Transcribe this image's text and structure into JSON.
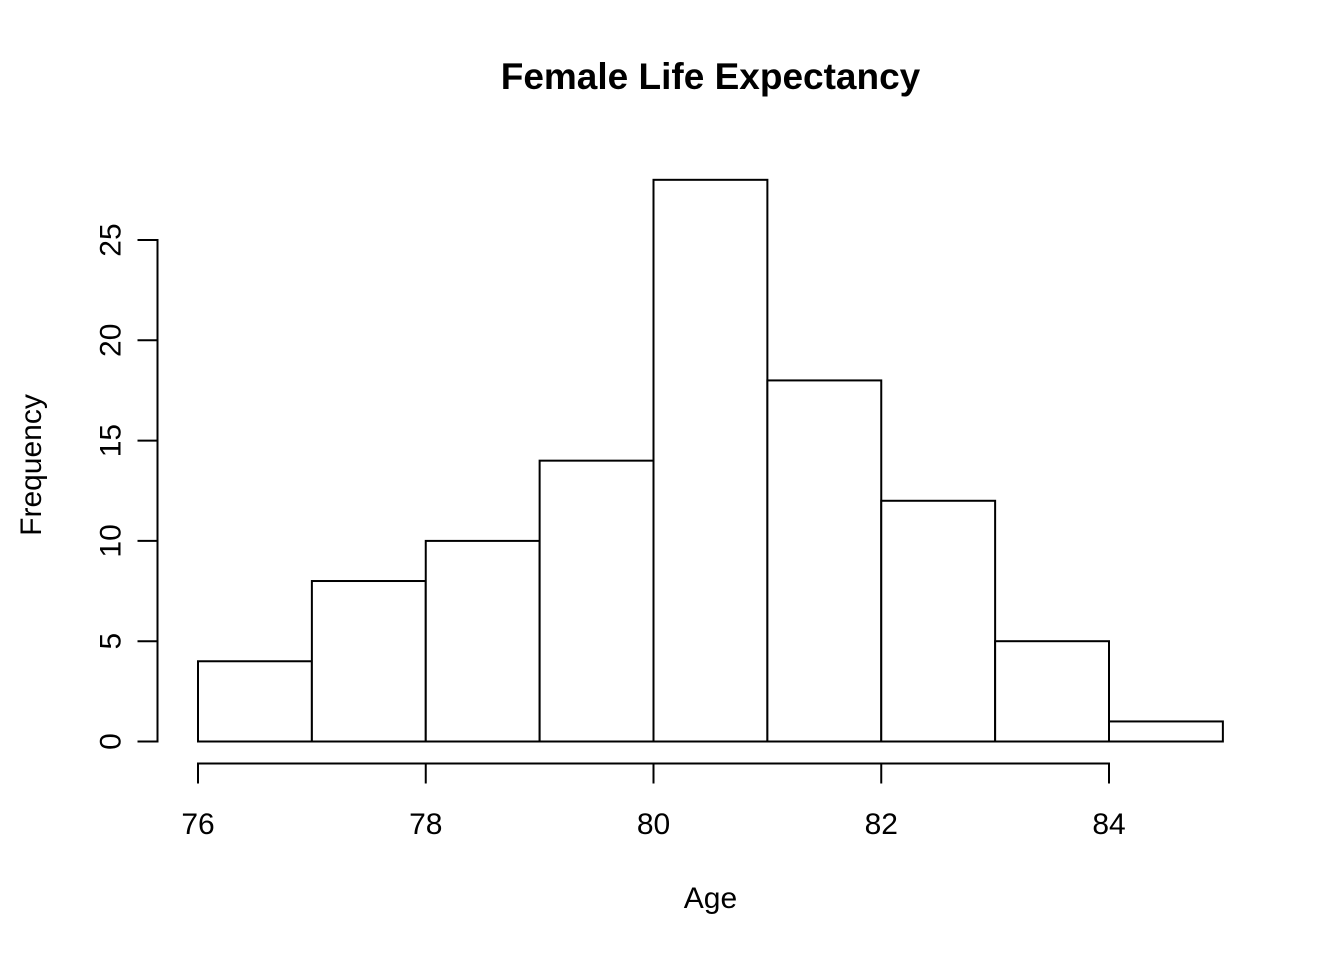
{
  "chart_data": {
    "type": "bar",
    "subtype": "histogram",
    "title": "Female Life Expectancy",
    "xlabel": "Age",
    "ylabel": "Frequency",
    "bin_edges": [
      76,
      77,
      78,
      79,
      80,
      81,
      82,
      83,
      84,
      85
    ],
    "counts": [
      4,
      8,
      10,
      14,
      28,
      18,
      12,
      5,
      1
    ],
    "x_ticks": [
      76,
      78,
      80,
      82,
      84
    ],
    "y_ticks": [
      0,
      5,
      10,
      15,
      20,
      25
    ],
    "xlim": [
      76,
      85
    ],
    "ylim": [
      0,
      28
    ],
    "x_axis_range": [
      76,
      84
    ],
    "y_axis_range": [
      0,
      25
    ],
    "grid": false,
    "legend": false,
    "bar_fill": "#ffffff",
    "line_color": "#000000",
    "background": "#ffffff"
  }
}
